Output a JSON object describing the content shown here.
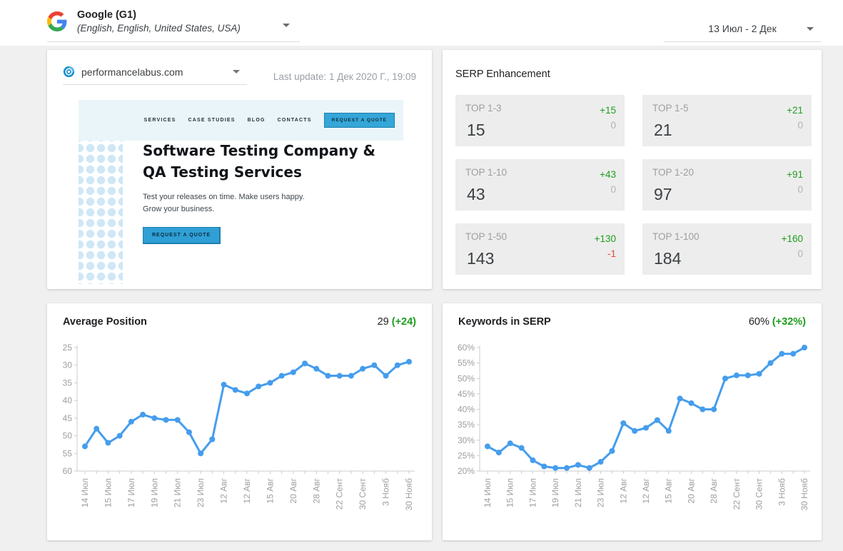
{
  "colors": {
    "chart_line_blue": "#459ded",
    "positive_green": "#1e9e1e",
    "negative_red": "#e8493c",
    "tile_gray": "#ededed",
    "banner_strip_blue": "#eaf5f9",
    "banner_button_blue": "#35a6d8",
    "dot_pattern_blue": "#cfe7f6"
  },
  "header": {
    "search_engine": {
      "name": "Google (G1)",
      "locale": "(English, English, United States, USA)"
    },
    "date_range": "13 Июл - 2 Дек"
  },
  "site_card": {
    "domain": "performancelabus.com",
    "last_update": "Last update: 1 Дек 2020 Г., 19:09",
    "banner": {
      "nav_links": [
        "SERVICES",
        "CASE STUDIES",
        "BLOG",
        "CONTACTS"
      ],
      "nav_button": "REQUEST A QUOTE",
      "headline_line1": "Software Testing Company &",
      "headline_line2": "QA Testing Services",
      "tagline_line1": "Test your releases on time. Make users happy.",
      "tagline_line2": "Grow your business.",
      "cta_button": "REQUEST A QUOTE"
    }
  },
  "serp_enhancement": {
    "title": "SERP Enhancement",
    "tiles": [
      {
        "label": "TOP 1-3",
        "value": "15",
        "gain": "+15",
        "loss": "0"
      },
      {
        "label": "TOP 1-5",
        "value": "21",
        "gain": "+21",
        "loss": "0"
      },
      {
        "label": "TOP 1-10",
        "value": "43",
        "gain": "+43",
        "loss": "0"
      },
      {
        "label": "TOP 1-20",
        "value": "97",
        "gain": "+91",
        "loss": "0"
      },
      {
        "label": "TOP 1-50",
        "value": "143",
        "gain": "+130",
        "loss": "-1"
      },
      {
        "label": "TOP 1-100",
        "value": "184",
        "gain": "+160",
        "loss": "0"
      }
    ]
  },
  "chart_data": [
    {
      "type": "line",
      "title": "Average Position",
      "current": "29",
      "change": "(+24)",
      "color": "#459ded",
      "ylim": [
        25,
        60
      ],
      "inverted": true,
      "grid": false,
      "y_tick_values": [
        25,
        30,
        35,
        40,
        45,
        50,
        55,
        60
      ],
      "y_tick_labels": [
        "25",
        "30",
        "35",
        "40",
        "45",
        "50",
        "55",
        "60"
      ],
      "x_labels": [
        "14 Июл",
        "15 Июл",
        "17 Июл",
        "19 Июл",
        "21 Июл",
        "23 Июл",
        "12 Авг",
        "12 Авг",
        "15 Авг",
        "20 Авг",
        "28 Авг",
        "22 Сент",
        "30 Сент",
        "3 Нояб",
        "30 Нояб"
      ],
      "values": [
        53,
        48,
        52,
        50,
        46,
        44,
        45,
        45.5,
        45.5,
        49,
        55,
        51,
        35.5,
        37,
        38,
        36,
        35,
        33,
        32,
        29.5,
        31,
        33,
        33,
        33,
        31,
        30,
        33,
        30,
        29
      ]
    },
    {
      "type": "line",
      "title": "Keywords in SERP",
      "current": "60%",
      "change": "(+32%)",
      "color": "#459ded",
      "ylim": [
        20,
        60
      ],
      "inverted": false,
      "grid": false,
      "y_tick_values": [
        60,
        55,
        50,
        45,
        40,
        35,
        30,
        25,
        20
      ],
      "y_tick_labels": [
        "60%",
        "55%",
        "50%",
        "45%",
        "40%",
        "35%",
        "30%",
        "25%",
        "20%"
      ],
      "x_labels": [
        "14 Июл",
        "15 Июл",
        "17 Июл",
        "19 Июл",
        "21 Июл",
        "23 Июл",
        "12 Авг",
        "12 Авг",
        "15 Авг",
        "20 Авг",
        "28 Авг",
        "22 Сент",
        "30 Сент",
        "3 Нояб",
        "30 Нояб"
      ],
      "values": [
        28,
        26,
        29,
        27.5,
        23.5,
        21.5,
        21,
        21,
        22,
        21,
        23,
        26.5,
        35.5,
        33,
        34,
        36.5,
        33,
        43.5,
        42,
        40,
        40,
        50,
        51,
        51,
        51.5,
        55,
        58,
        58,
        60
      ]
    }
  ]
}
